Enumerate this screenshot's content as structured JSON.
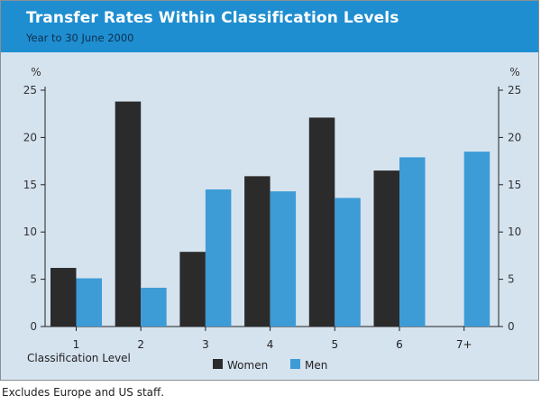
{
  "colors": {
    "header_background": "#1f8ed0",
    "plot_background": "#d5e3ef",
    "women": "#2b2b2b",
    "men": "#3d9bd6"
  },
  "chart_data": {
    "type": "bar",
    "title": "Transfer Rates Within Classification Levels",
    "subtitle": "Year to 30 June 2000",
    "ylabel": "%",
    "ylabel_right": "%",
    "xlabel": "Classification Level",
    "ylim": [
      0,
      25
    ],
    "yticks": [
      0,
      5,
      10,
      15,
      20,
      25
    ],
    "categories": [
      "1",
      "2",
      "3",
      "4",
      "5",
      "6",
      "7+"
    ],
    "series": [
      {
        "name": "Women",
        "color": "#2b2b2b",
        "values": [
          6.2,
          23.8,
          7.9,
          15.9,
          22.1,
          16.5,
          null
        ]
      },
      {
        "name": "Men",
        "color": "#3d9bd6",
        "values": [
          5.1,
          4.1,
          14.5,
          14.3,
          13.6,
          17.9,
          18.5
        ]
      }
    ],
    "legend_position": "bottom-center",
    "grid": false,
    "footnote": "Excludes Europe and US staff."
  }
}
